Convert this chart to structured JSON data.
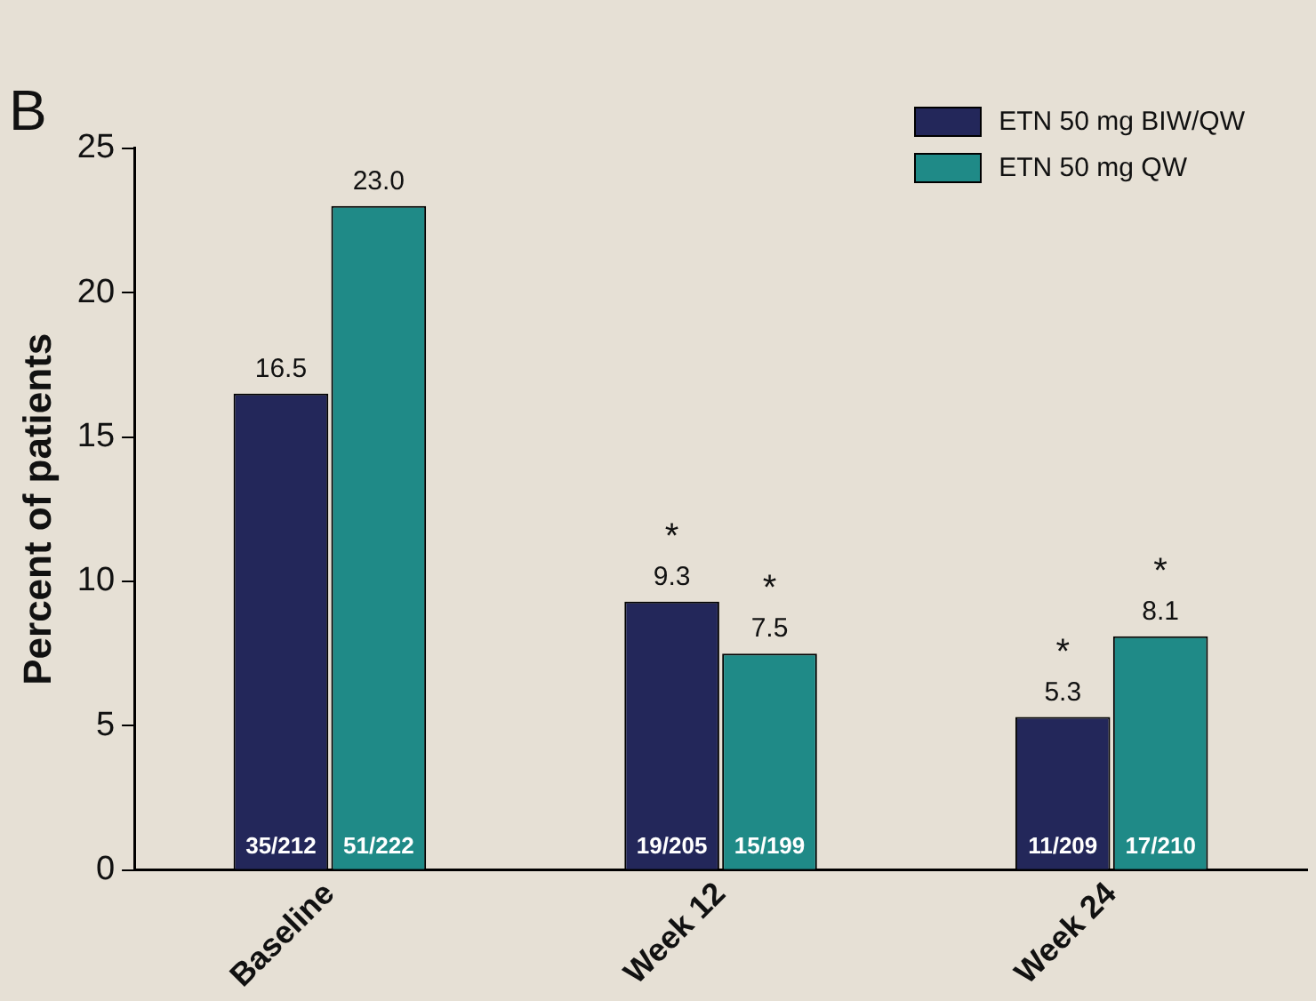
{
  "chart_data": {
    "type": "bar",
    "title": "B",
    "ylabel": "Percent of patients",
    "categories": [
      "Baseline",
      "Week 12",
      "Week 24"
    ],
    "series": [
      {
        "name": "ETN 50 mg BIW/QW",
        "color": "#23275a",
        "values": [
          16.5,
          9.3,
          5.3
        ],
        "value_labels": [
          "16.5",
          "9.3",
          "5.3"
        ]
      },
      {
        "name": "ETN 50 mg QW",
        "color": "#1f8a87",
        "values": [
          23.0,
          7.5,
          8.1
        ],
        "value_labels": [
          "23.0",
          "7.5",
          "8.1"
        ]
      }
    ],
    "ylim": [
      0,
      25
    ],
    "yticks": [
      0,
      5,
      10,
      15,
      20,
      25
    ],
    "grid": false,
    "legend": "top right",
    "annotations": [
      {
        "text": "35/212",
        "x": "Baseline",
        "y": 0.8
      },
      {
        "text": "51/222",
        "x": "Baseline",
        "y": 0.8
      },
      {
        "text": "19/205",
        "x": "Week 12",
        "y": 0.8
      },
      {
        "text": "15/199",
        "x": "Week 12",
        "y": 0.8
      },
      {
        "text": "*",
        "x": "Week 12",
        "y": 9.3
      },
      {
        "text": "*",
        "x": "Week 12",
        "y": 7.5
      },
      {
        "text": "11/209",
        "x": "Week 24",
        "y": 0.8
      },
      {
        "text": "17/210",
        "x": "Week 24",
        "y": 0.8
      },
      {
        "text": "*",
        "x": "Week 24",
        "y": 5.3
      },
      {
        "text": "*",
        "x": "Week 24",
        "y": 8.1
      }
    ]
  }
}
